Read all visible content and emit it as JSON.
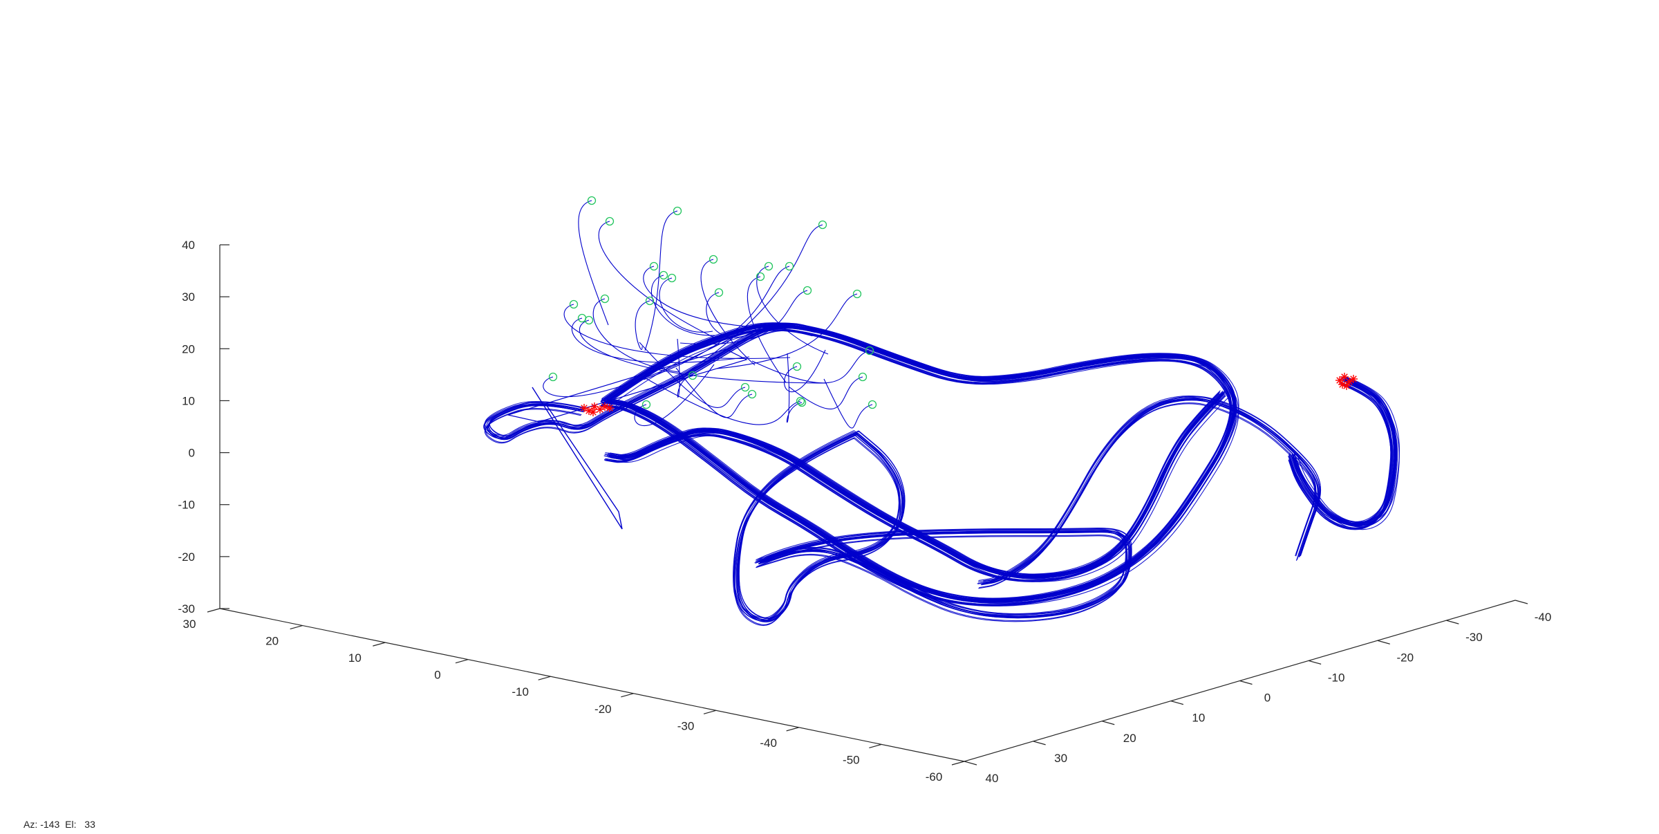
{
  "chart_data": {
    "type": "line",
    "title": "",
    "projection": "3d",
    "view": {
      "azimuth": -143,
      "elevation": 33
    },
    "x_axis": {
      "range": [
        -60,
        30
      ],
      "ticks": [
        30,
        20,
        10,
        0,
        -10,
        -20,
        -30,
        -40,
        -50,
        -60
      ],
      "label": ""
    },
    "y_axis": {
      "range": [
        -40,
        40
      ],
      "ticks": [
        40,
        30,
        20,
        10,
        0,
        -10,
        -20,
        -30,
        -40
      ],
      "label": ""
    },
    "z_axis": {
      "range": [
        -30,
        40
      ],
      "ticks": [
        40,
        30,
        20,
        10,
        0,
        -10,
        -20,
        -30
      ],
      "label": ""
    },
    "grid": false,
    "colors": {
      "trajectory": "#0000cc",
      "start_marker": "#22c55e",
      "end_marker": "#ff0000",
      "axis": "#262626"
    },
    "markers": {
      "start": {
        "symbol": "circle",
        "color": "#22c55e",
        "count": 30
      },
      "end": {
        "symbol": "asterisk",
        "color": "#ff0000",
        "clusters": 2
      }
    },
    "series_count": 30
  },
  "status_bar": {
    "az_label": "Az:",
    "az_value": "-143",
    "el_label": "El:",
    "el_value": "33"
  }
}
